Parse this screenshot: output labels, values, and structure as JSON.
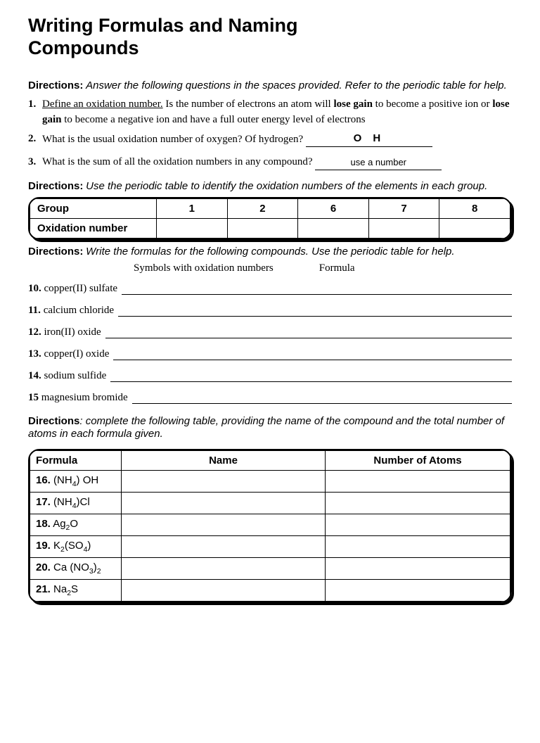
{
  "title_line1": "Writing Formulas and Naming",
  "title_line2": "Compounds",
  "dir1_label": "Directions:",
  "dir1_text": "Answer the following questions in the spaces provided. Refer to the periodic table for help.",
  "q1_num": "1.",
  "q1_underlined": "Define an oxidation number.",
  "q1_text_a": " Is the number of electrons an atom will ",
  "q1_bold1": "lose gain",
  "q1_text_b": " to become a positive ion or ",
  "q1_bold2": "lose gain",
  "q1_text_c": " to become a negative ion and have a full outer energy level of    electrons",
  "q2_num": "2.",
  "q2_text": "What is the usual oxidation number of oxygen? Of hydrogen? ",
  "q2_answer": "O    H",
  "q3_num": "3.",
  "q3_text": "What is the sum of all the oxidation numbers in any compound? ",
  "q3_answer": "use a number",
  "dir2_label": "Directions:",
  "dir2_text": "Use the periodic table to identify the oxidation numbers of the elements in each group.",
  "ox_header1": "Group",
  "ox_cols": [
    "1",
    "2",
    "6",
    "7",
    "8"
  ],
  "ox_header2": "Oxidation number",
  "dir3_label": "Directions:",
  "dir3_text": "Write the formulas for the following compounds. Use the periodic table for help.",
  "col_h1": "Symbols with oxidation numbers",
  "col_h2": "Formula",
  "compounds": [
    {
      "n": "10.",
      "name": "copper(II) sulfate"
    },
    {
      "n": "11.",
      "name": "calcium chloride"
    },
    {
      "n": "12.",
      "name": "iron(II) oxide"
    },
    {
      "n": "13.",
      "name": "copper(I) oxide"
    },
    {
      "n": "14.",
      "name": "sodium sulfide"
    },
    {
      "n": "15",
      "name": "magnesium bromide"
    }
  ],
  "dir4_label": "Directions",
  "dir4_text": ": complete the following table, providing the name of the compound and the total number of atoms in each formula given.",
  "ft_h1": "Formula",
  "ft_h2": "Name",
  "ft_h3": "Number of Atoms",
  "ft_rows": [
    {
      "n": "16.",
      "f_pre": "(NH",
      "f_sub1": "4",
      "f_mid": ") OH",
      "f_sub2": "",
      "f_post": ""
    },
    {
      "n": "17.",
      "f_pre": "(NH",
      "f_sub1": "4",
      "f_mid": ")Cl",
      "f_sub2": "",
      "f_post": ""
    },
    {
      "n": "18.",
      "f_pre": "Ag",
      "f_sub1": "2",
      "f_mid": "O",
      "f_sub2": "",
      "f_post": ""
    },
    {
      "n": "19.",
      "f_pre": "K",
      "f_sub1": "2",
      "f_mid": "(SO",
      "f_sub2": "4",
      "f_post": ")"
    },
    {
      "n": "20.",
      "f_pre": "Ca (NO",
      "f_sub1": "3",
      "f_mid": ")",
      "f_sub2": "2",
      "f_post": ""
    },
    {
      "n": "21.",
      "f_pre": "Na",
      "f_sub1": "2",
      "f_mid": "S",
      "f_sub2": "",
      "f_post": ""
    }
  ]
}
